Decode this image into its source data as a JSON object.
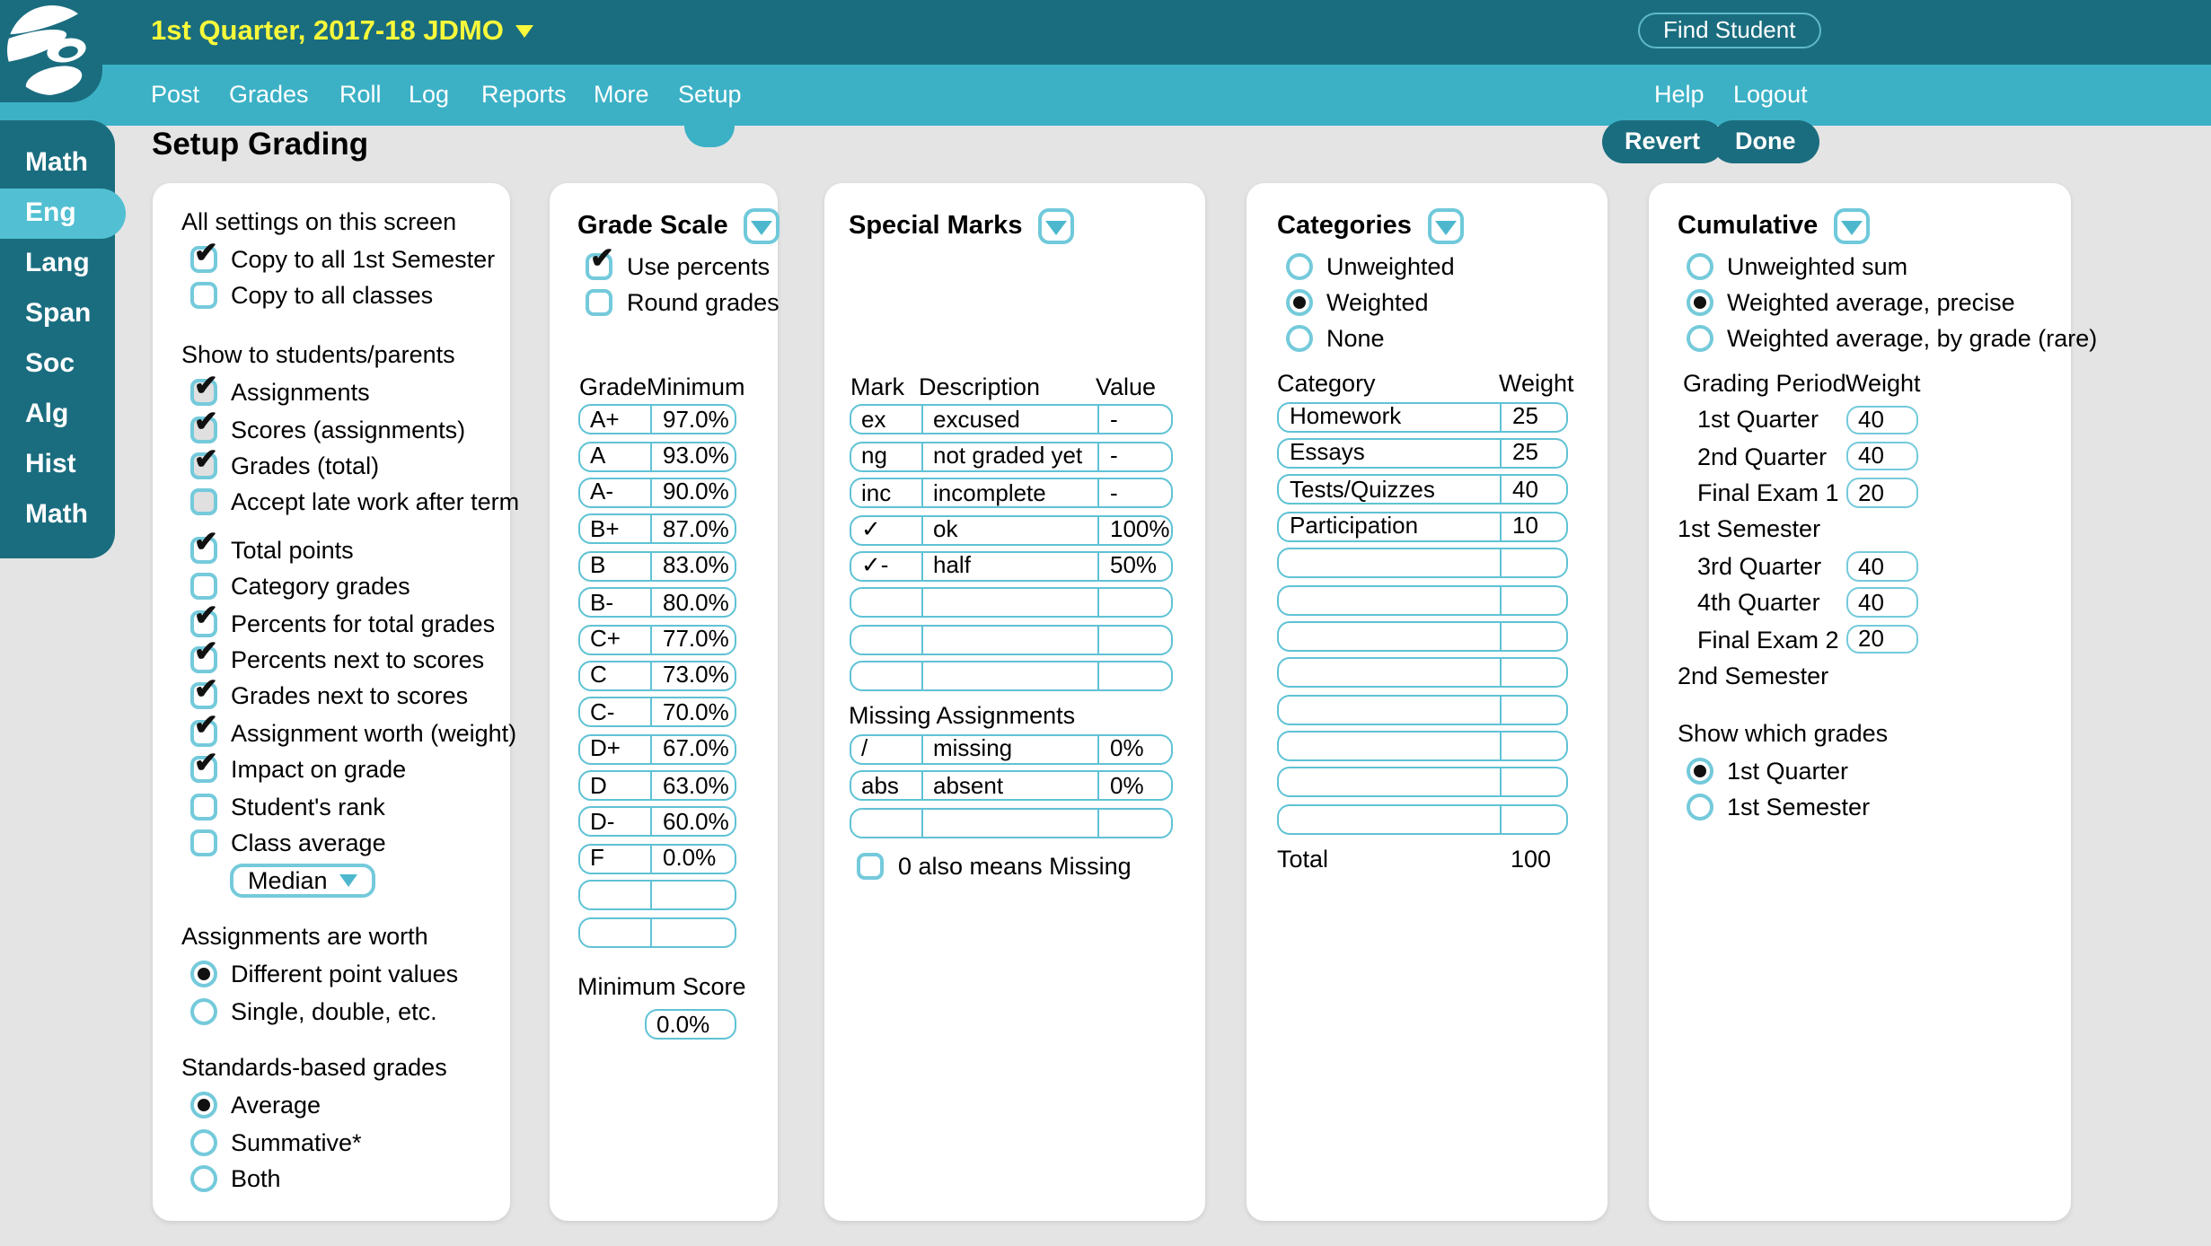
{
  "header": {
    "term_title": "1st Quarter, 2017-18 JDMO",
    "find_student": "Find Student",
    "nav": [
      "Post",
      "Grades",
      "Roll",
      "Log",
      "Reports",
      "More",
      "Setup"
    ],
    "nav_active": "Setup",
    "help": "Help",
    "logout": "Logout"
  },
  "sidebar": {
    "items": [
      "Math",
      "Eng",
      "Lang",
      "Span",
      "Soc",
      "Alg",
      "Hist",
      "Math"
    ],
    "active_index": 1
  },
  "page": {
    "title": "Setup Grading",
    "revert": "Revert",
    "done": "Done"
  },
  "settings": {
    "heading1": "All settings on this screen",
    "copy_options": [
      {
        "label": "Copy to all 1st Semester",
        "checked": true
      },
      {
        "label": "Copy to all classes",
        "checked": false
      }
    ],
    "heading2": "Show to students/parents",
    "show_options": [
      {
        "label": "Assignments",
        "checked": true
      },
      {
        "label": "Scores (assignments)",
        "checked": true
      },
      {
        "label": "Grades (total)",
        "checked": true
      },
      {
        "label": "Accept late work after term",
        "checked": false
      }
    ],
    "display_options": [
      {
        "label": "Total points",
        "checked": true
      },
      {
        "label": "Category grades",
        "checked": false
      },
      {
        "label": "Percents for total grades",
        "checked": true
      },
      {
        "label": "Percents next to scores",
        "checked": true
      },
      {
        "label": "Grades next to scores",
        "checked": true
      },
      {
        "label": "Assignment worth (weight)",
        "checked": true
      },
      {
        "label": "Impact on grade",
        "checked": true
      },
      {
        "label": "Student's rank",
        "checked": false
      },
      {
        "label": "Class average",
        "checked": false
      }
    ],
    "average_dropdown": "Median",
    "heading3": "Assignments are worth",
    "worth_options": [
      {
        "label": "Different point values",
        "selected": true
      },
      {
        "label": "Single, double, etc.",
        "selected": false
      }
    ],
    "heading4": "Standards-based grades",
    "standards_options": [
      {
        "label": "Average",
        "selected": true
      },
      {
        "label": "Summative*",
        "selected": false
      },
      {
        "label": "Both",
        "selected": false
      }
    ]
  },
  "grade_scale": {
    "title": "Grade Scale",
    "options": [
      {
        "label": "Use percents",
        "checked": true
      },
      {
        "label": "Round grades",
        "checked": false
      }
    ],
    "col1": "Grade",
    "col2": "Minimum",
    "rows": [
      [
        "A+",
        "97.0%"
      ],
      [
        "A",
        "93.0%"
      ],
      [
        "A-",
        "90.0%"
      ],
      [
        "B+",
        "87.0%"
      ],
      [
        "B",
        "83.0%"
      ],
      [
        "B-",
        "80.0%"
      ],
      [
        "C+",
        "77.0%"
      ],
      [
        "C",
        "73.0%"
      ],
      [
        "C-",
        "70.0%"
      ],
      [
        "D+",
        "67.0%"
      ],
      [
        "D",
        "63.0%"
      ],
      [
        "D-",
        "60.0%"
      ],
      [
        "F",
        "0.0%"
      ],
      [
        "",
        ""
      ],
      [
        "",
        ""
      ]
    ],
    "min_score_label": "Minimum Score",
    "min_score_value": "0.0%"
  },
  "special_marks": {
    "title": "Special Marks",
    "col1": "Mark",
    "col2": "Description",
    "col3": "Value",
    "rows": [
      [
        "ex",
        "excused",
        "-"
      ],
      [
        "ng",
        "not graded yet",
        "-"
      ],
      [
        "inc",
        "incomplete",
        "-"
      ],
      [
        "✓",
        "ok",
        "100%"
      ],
      [
        "✓-",
        "half",
        "50%"
      ],
      [
        "",
        "",
        ""
      ],
      [
        "",
        "",
        ""
      ],
      [
        "",
        "",
        ""
      ]
    ],
    "missing_heading": "Missing Assignments",
    "missing_rows": [
      [
        "/",
        "missing",
        "0%"
      ],
      [
        "abs",
        "absent",
        "0%"
      ],
      [
        "",
        "",
        ""
      ]
    ],
    "zero_missing": {
      "label": "0 also means Missing",
      "checked": false
    }
  },
  "categories": {
    "title": "Categories",
    "mode_options": [
      {
        "label": "Unweighted",
        "selected": false
      },
      {
        "label": "Weighted",
        "selected": true
      },
      {
        "label": "None",
        "selected": false
      }
    ],
    "col1": "Category",
    "col2": "Weight",
    "rows": [
      [
        "Homework",
        "25"
      ],
      [
        "Essays",
        "25"
      ],
      [
        "Tests/Quizzes",
        "40"
      ],
      [
        "Participation",
        "10"
      ],
      [
        "",
        ""
      ],
      [
        "",
        ""
      ],
      [
        "",
        ""
      ],
      [
        "",
        ""
      ],
      [
        "",
        ""
      ],
      [
        "",
        ""
      ],
      [
        "",
        ""
      ],
      [
        "",
        ""
      ]
    ],
    "total_label": "Total",
    "total_value": "100"
  },
  "cumulative": {
    "title": "Cumulative",
    "mode_options": [
      {
        "label": "Unweighted sum",
        "selected": false
      },
      {
        "label": "Weighted average, precise",
        "selected": true
      },
      {
        "label": "Weighted average, by grade (rare)",
        "selected": false
      }
    ],
    "col1": "Grading Period",
    "col2": "Weight",
    "periods": [
      {
        "label": "1st Quarter",
        "weight": "40"
      },
      {
        "label": "2nd Quarter",
        "weight": "40"
      },
      {
        "label": "Final Exam 1",
        "weight": "20"
      },
      {
        "label": "1st Semester",
        "weight": null
      },
      {
        "label": "3rd Quarter",
        "weight": "40"
      },
      {
        "label": "4th Quarter",
        "weight": "40"
      },
      {
        "label": "Final Exam 2",
        "weight": "20"
      },
      {
        "label": "2nd Semester",
        "weight": null
      }
    ],
    "show_heading": "Show which grades",
    "show_options": [
      {
        "label": "1st Quarter",
        "selected": true
      },
      {
        "label": "1st Semester",
        "selected": false
      }
    ]
  }
}
